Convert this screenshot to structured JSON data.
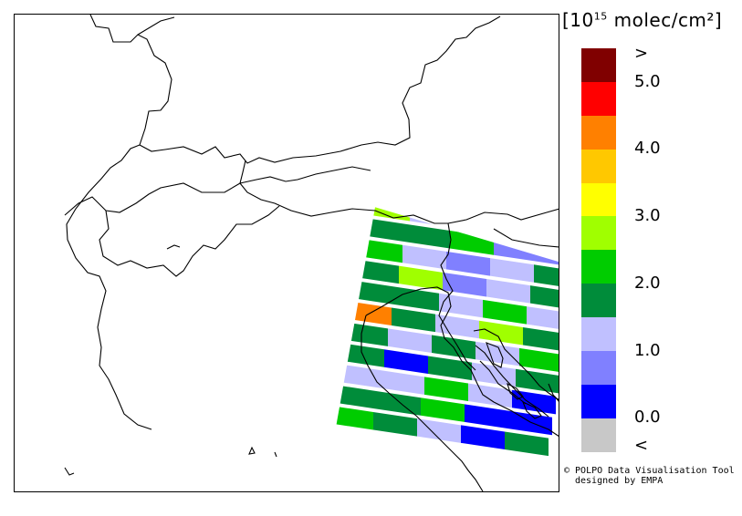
{
  "legend": {
    "title_prefix": "[10",
    "title_exp": "15",
    "title_suffix": " molec/cm²]",
    "labels": [
      ">",
      "5.0",
      "4.0",
      "3.0",
      "2.0",
      "1.0",
      "0.0",
      "<"
    ],
    "colors": [
      "#800000",
      "#ff0000",
      "#ff8000",
      "#ffc800",
      "#ffff00",
      "#a0ff00",
      "#00cc00",
      "#008c3a",
      "#c0c0ff",
      "#8080ff",
      "#0000ff",
      "#c8c8c8"
    ]
  },
  "credit": {
    "line1": "© POLPO Data Visualisation Tool",
    "line2": "designed by EMPA"
  }
}
